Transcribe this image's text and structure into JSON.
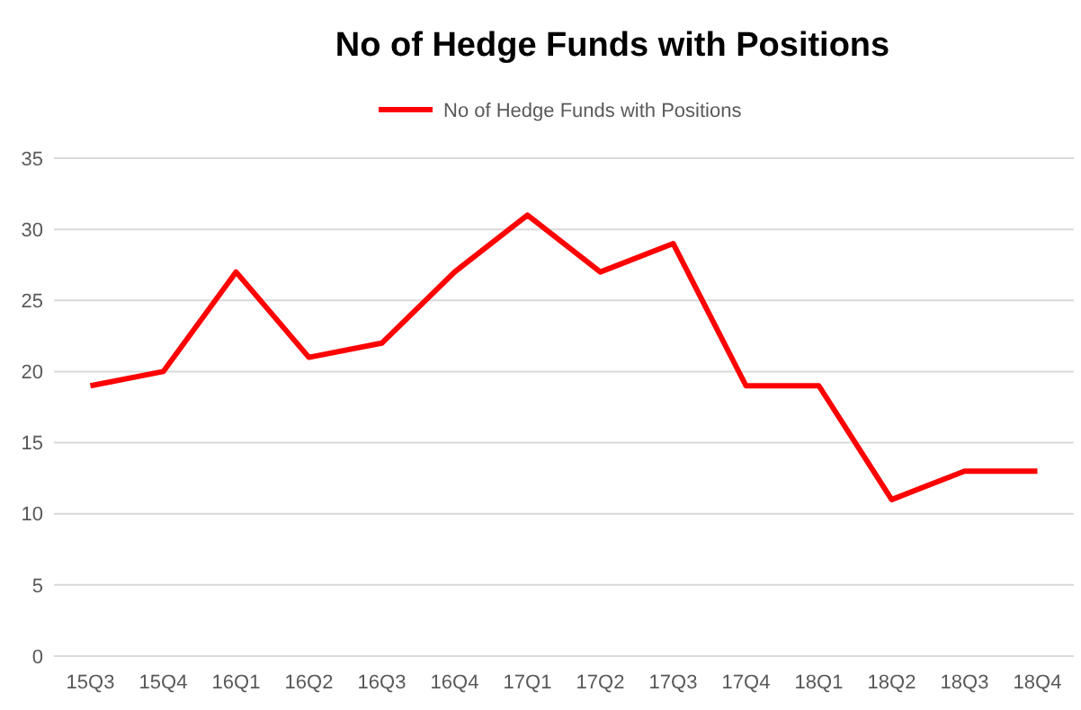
{
  "chart_data": {
    "type": "line",
    "title": "No of Hedge Funds with Positions",
    "categories": [
      "15Q3",
      "15Q4",
      "16Q1",
      "16Q2",
      "16Q3",
      "16Q4",
      "17Q1",
      "17Q2",
      "17Q3",
      "17Q4",
      "18Q1",
      "18Q2",
      "18Q3",
      "18Q4"
    ],
    "series": [
      {
        "name": "No of Hedge Funds with Positions",
        "color": "#ff0000",
        "values": [
          19,
          20,
          27,
          21,
          22,
          27,
          31,
          27,
          29,
          19,
          19,
          11,
          13,
          13
        ]
      }
    ],
    "ylim": [
      0,
      35
    ],
    "yticks": [
      0,
      5,
      10,
      15,
      20,
      25,
      30,
      35
    ],
    "grid": "y",
    "legend": "top",
    "marker": "none"
  }
}
